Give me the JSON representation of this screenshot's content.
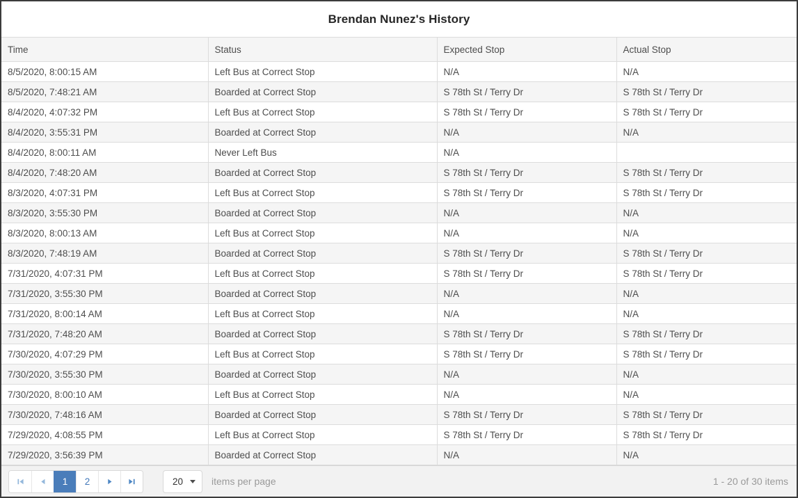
{
  "title": "Brendan Nunez's History",
  "table": {
    "columns": [
      "Time",
      "Status",
      "Expected Stop",
      "Actual Stop"
    ],
    "rows": [
      [
        "8/5/2020, 8:00:15 AM",
        "Left Bus at Correct Stop",
        "N/A",
        "N/A"
      ],
      [
        "8/5/2020, 7:48:21 AM",
        "Boarded at Correct Stop",
        "S 78th St / Terry Dr",
        "S 78th St / Terry Dr"
      ],
      [
        "8/4/2020, 4:07:32 PM",
        "Left Bus at Correct Stop",
        "S 78th St / Terry Dr",
        "S 78th St / Terry Dr"
      ],
      [
        "8/4/2020, 3:55:31 PM",
        "Boarded at Correct Stop",
        "N/A",
        "N/A"
      ],
      [
        "8/4/2020, 8:00:11 AM",
        "Never Left Bus",
        "N/A",
        ""
      ],
      [
        "8/4/2020, 7:48:20 AM",
        "Boarded at Correct Stop",
        "S 78th St / Terry Dr",
        "S 78th St / Terry Dr"
      ],
      [
        "8/3/2020, 4:07:31 PM",
        "Left Bus at Correct Stop",
        "S 78th St / Terry Dr",
        "S 78th St / Terry Dr"
      ],
      [
        "8/3/2020, 3:55:30 PM",
        "Boarded at Correct Stop",
        "N/A",
        "N/A"
      ],
      [
        "8/3/2020, 8:00:13 AM",
        "Left Bus at Correct Stop",
        "N/A",
        "N/A"
      ],
      [
        "8/3/2020, 7:48:19 AM",
        "Boarded at Correct Stop",
        "S 78th St / Terry Dr",
        "S 78th St / Terry Dr"
      ],
      [
        "7/31/2020, 4:07:31 PM",
        "Left Bus at Correct Stop",
        "S 78th St / Terry Dr",
        "S 78th St / Terry Dr"
      ],
      [
        "7/31/2020, 3:55:30 PM",
        "Boarded at Correct Stop",
        "N/A",
        "N/A"
      ],
      [
        "7/31/2020, 8:00:14 AM",
        "Left Bus at Correct Stop",
        "N/A",
        "N/A"
      ],
      [
        "7/31/2020, 7:48:20 AM",
        "Boarded at Correct Stop",
        "S 78th St / Terry Dr",
        "S 78th St / Terry Dr"
      ],
      [
        "7/30/2020, 4:07:29 PM",
        "Left Bus at Correct Stop",
        "S 78th St / Terry Dr",
        "S 78th St / Terry Dr"
      ],
      [
        "7/30/2020, 3:55:30 PM",
        "Boarded at Correct Stop",
        "N/A",
        "N/A"
      ],
      [
        "7/30/2020, 8:00:10 AM",
        "Left Bus at Correct Stop",
        "N/A",
        "N/A"
      ],
      [
        "7/30/2020, 7:48:16 AM",
        "Boarded at Correct Stop",
        "S 78th St / Terry Dr",
        "S 78th St / Terry Dr"
      ],
      [
        "7/29/2020, 4:08:55 PM",
        "Left Bus at Correct Stop",
        "S 78th St / Terry Dr",
        "S 78th St / Terry Dr"
      ],
      [
        "7/29/2020, 3:56:39 PM",
        "Boarded at Correct Stop",
        "N/A",
        "N/A"
      ]
    ]
  },
  "pager": {
    "current_page": "1",
    "pages": [
      "1",
      "2"
    ],
    "page_size": "20",
    "items_per_page_label": "items per page",
    "range_label": "1 - 20 of 30 items"
  },
  "colors": {
    "accent_blue": "#4a7dba",
    "link_blue": "#4278ba",
    "disabled_icon_blue": "#94b8dc",
    "enabled_icon_blue": "#4d86c4"
  }
}
